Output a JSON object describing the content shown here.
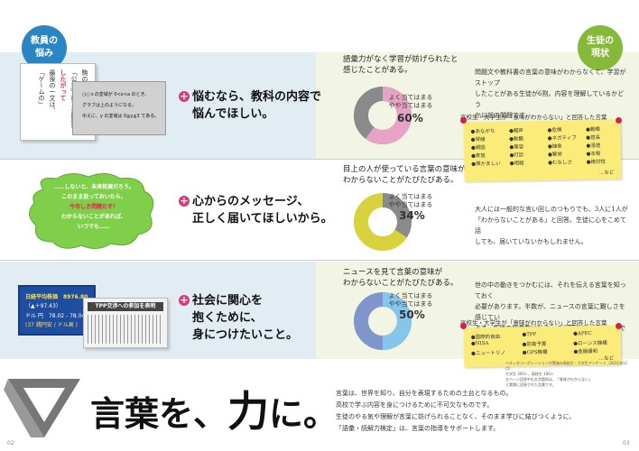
{
  "badges": {
    "teacher": [
      "教員の",
      "悩み"
    ],
    "student": [
      "生徒の",
      "現状"
    ]
  },
  "rows": [
    {
      "message": [
        "悩むなら、教科の内容で",
        "悩んでほしい。"
      ],
      "question": [
        "語彙力がなく学習が妨げられたと",
        "感じたことがある。"
      ],
      "answer_lines": [
        "よく当てはまる",
        "やや当てはまる"
      ],
      "percent_label": "60%",
      "percent": 60,
      "right_text": [
        "問題文や教科書の言葉の意味がわからなくて、学習がストップ",
        "したことがある生徒が6割。内容を理解しているかどう",
        "か以前の問題です。"
      ]
    },
    {
      "message": [
        "心からのメッセージ、",
        "正しく届いてほしいから。"
      ],
      "question": [
        "目上の人が使っている言葉の意味が",
        "わからないことがたびたびある。"
      ],
      "answer_lines": [
        "よく当てはまる",
        "やや当てはまる"
      ],
      "percent_label": "34%",
      "percent": 34,
      "right_text": [
        "大人には一般的な言い回しのつもりでも、3人に1人が",
        "「わからないことがある」と回答。生徒に心をこめて話",
        "しても、届いていないかもしれません。"
      ]
    },
    {
      "message": [
        "社会に関心を",
        "抱くために、",
        "身につけたいこと。"
      ],
      "question": [
        "ニュースを見て言葉の意味が",
        "わからないことがたびたびある。"
      ],
      "answer_lines": [
        "よく当てはまる",
        "やや当てはまる"
      ],
      "percent_label": "50%",
      "percent": 50,
      "right_text": [
        "世の中の動きをつかむには、それを伝える言葉を知っておく",
        "必要があります。半数が、ニュースの言葉に難しさを感じてい",
        "ます。生徒の語彙数は社会への視野の広さそのものです。"
      ]
    }
  ],
  "note1": {
    "title": "高校生・大学生が「意味がわからない」と回答した言葉",
    "items": [
      "あながち",
      "琴線",
      "頑固",
      "奔放",
      "厚かましい",
      "擬声",
      "勧酷",
      "寛容",
      "打診",
      "相殺",
      "危惧",
      "ネガティブ",
      "抽象",
      "繁栄",
      "むなしさ",
      "範疇",
      "悠長",
      "浸透",
      "本唆",
      "絶対性",
      "…など"
    ]
  },
  "note2": {
    "title": "高校生・大学生が「意味がわからない」と回答した言葉",
    "items": [
      "国際的自由",
      "NISA",
      "ニュートリノ",
      "TPP",
      "防衛予算",
      "GPS機構",
      "APEC",
      "ローンス機構",
      "金融緩和",
      "…など"
    ]
  },
  "illus1": {
    "lines": [
      "駒の",
      "「公式」は三角関数で",
      "したがって",
      "最後の一文は、",
      "「ゲームの」"
    ],
    "card_lines": [
      "○○ｘの変域が 0<x<a のとき、",
      "グラフは上のようになる。",
      "ゆえに、y の変域は 0≦y≦3 である。"
    ]
  },
  "illus2": {
    "lines": [
      "……しないと、未来拓展だろう。",
      "このまま放っておいたら、",
      "今寺しき問題だぞ！",
      "わからないことがあれば、",
      "いつでも……"
    ]
  },
  "illus3": {
    "ticker": [
      "日経平均株価　8976.80",
      "（▲＋97.43）",
      "ドル 円　78.02 - 78.04",
      "(37 銭円安 / ドル高 )"
    ],
    "headline": "TPP交渉への参加を表明"
  },
  "footer": {
    "title": "言葉を、力に。",
    "title_parts": [
      "言葉を、",
      "力",
      "に。"
    ],
    "body": [
      "言葉は、世界を知り、自分を表現するための土台となるもの。",
      "高校で学ぶ内容を身につけるために不可欠なものです。",
      "生徒のやる気や理解が言葉に妨げられることなく、そのまま学びに結びつくように、",
      "「語彙・読解力検定」は、言葉の指導をサポートします。"
    ],
    "source": [
      "ベネッセコーポレーションが実施の高校生・大学生アンケート（2011年12月）",
      "大学生 300人、高校生 100人",
      "左ページ回答中の太字箇所は、「意味がわからない」",
      "と実際に回答された言葉です。"
    ],
    "page_left": "02",
    "page_right": "03"
  },
  "colors": {
    "pink": "#e6a3c6",
    "gray": "#8a8a8a",
    "yellow": "#d8d23d",
    "blue": "#7f95cc",
    "lightblue": "#85c6ea",
    "accent": "#d43d7b",
    "teacher_badge": "#2a86c3",
    "student_badge": "#86b83a"
  }
}
